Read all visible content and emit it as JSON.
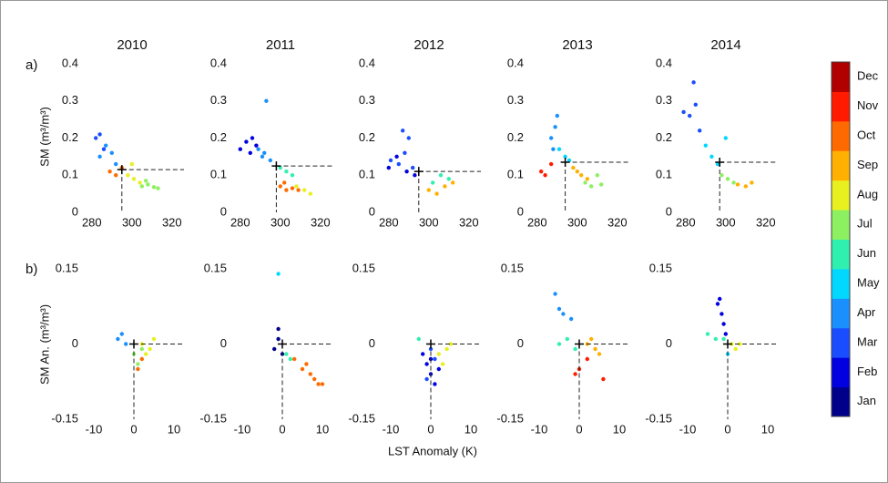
{
  "panel_labels": [
    "a)",
    "b)"
  ],
  "y_labels": [
    "SM (m³/m³)",
    "SM An. (m³/m³)"
  ],
  "x_label": "LST Anomaly (K)",
  "colorbar": {
    "labels": [
      "Jan",
      "Feb",
      "Mar",
      "Apr",
      "May",
      "Jun",
      "Jul",
      "Aug",
      "Sep",
      "Oct",
      "Nov",
      "Dec"
    ],
    "colors": [
      "#00008b",
      "#0000e0",
      "#1a4dff",
      "#1a90ff",
      "#00d8ff",
      "#30f0b0",
      "#8cf060",
      "#e8f020",
      "#ffb000",
      "#ff6a00",
      "#ff1a00",
      "#b00000"
    ]
  },
  "chart_data": [
    {
      "type": "scatter",
      "title": "2010",
      "xlim": [
        276,
        326
      ],
      "xticks": [
        280,
        300,
        320
      ],
      "ylim": [
        0,
        0.4
      ],
      "yticks": [
        0,
        0.1,
        0.2,
        0.3,
        0.4
      ],
      "reference": {
        "x": 295,
        "y": 0.115
      },
      "series": [
        {
          "color": "#1a4dff",
          "x": [
            282,
            284,
            286
          ],
          "values": [
            0.2,
            0.21,
            0.17
          ]
        },
        {
          "color": "#1a90ff",
          "x": [
            284,
            287,
            290,
            292
          ],
          "values": [
            0.15,
            0.18,
            0.16,
            0.13
          ]
        },
        {
          "color": "#ff6a00",
          "x": [
            289,
            292,
            295
          ],
          "values": [
            0.11,
            0.1,
            0.12
          ]
        },
        {
          "color": "#e8f020",
          "x": [
            298,
            301,
            304,
            300
          ],
          "values": [
            0.1,
            0.09,
            0.08,
            0.13
          ]
        },
        {
          "color": "#8cf060",
          "x": [
            305,
            308,
            311,
            313,
            307
          ],
          "values": [
            0.07,
            0.075,
            0.068,
            0.065,
            0.085
          ]
        }
      ]
    },
    {
      "type": "scatter",
      "title": "2011",
      "xlim": [
        276,
        326
      ],
      "xticks": [
        280,
        300,
        320
      ],
      "ylim": [
        0,
        0.4
      ],
      "yticks": [
        0,
        0.1,
        0.2,
        0.3,
        0.4
      ],
      "reference": {
        "x": 298,
        "y": 0.125
      },
      "series": [
        {
          "color": "#0000e0",
          "x": [
            280,
            283,
            286,
            288,
            285
          ],
          "values": [
            0.17,
            0.19,
            0.2,
            0.18,
            0.16
          ]
        },
        {
          "color": "#1a90ff",
          "x": [
            289,
            292,
            295,
            293,
            291
          ],
          "values": [
            0.17,
            0.16,
            0.14,
            0.3,
            0.15
          ]
        },
        {
          "color": "#30f0b0",
          "x": [
            300,
            303,
            306
          ],
          "values": [
            0.12,
            0.11,
            0.1
          ]
        },
        {
          "color": "#ff6a00",
          "x": [
            300,
            303,
            306,
            309,
            302
          ],
          "values": [
            0.07,
            0.06,
            0.065,
            0.06,
            0.08
          ]
        },
        {
          "color": "#e8f020",
          "x": [
            308,
            312,
            315
          ],
          "values": [
            0.07,
            0.06,
            0.05
          ]
        }
      ]
    },
    {
      "type": "scatter",
      "title": "2012",
      "xlim": [
        276,
        326
      ],
      "xticks": [
        280,
        300,
        320
      ],
      "ylim": [
        0,
        0.4
      ],
      "yticks": [
        0,
        0.1,
        0.2,
        0.3,
        0.4
      ],
      "reference": {
        "x": 295,
        "y": 0.11
      },
      "series": [
        {
          "color": "#1a4dff",
          "x": [
            281,
            285,
            288,
            290,
            287,
            292
          ],
          "values": [
            0.14,
            0.13,
            0.16,
            0.2,
            0.22,
            0.12
          ]
        },
        {
          "color": "#0000e0",
          "x": [
            280,
            284,
            289,
            293
          ],
          "values": [
            0.12,
            0.15,
            0.11,
            0.1
          ]
        },
        {
          "color": "#ffb000",
          "x": [
            300,
            304,
            308,
            312
          ],
          "values": [
            0.06,
            0.05,
            0.07,
            0.08
          ]
        },
        {
          "color": "#30f0b0",
          "x": [
            302,
            306,
            310
          ],
          "values": [
            0.08,
            0.1,
            0.09
          ]
        }
      ]
    },
    {
      "type": "scatter",
      "title": "2013",
      "xlim": [
        276,
        326
      ],
      "xticks": [
        280,
        300,
        320
      ],
      "ylim": [
        0,
        0.4
      ],
      "yticks": [
        0,
        0.1,
        0.2,
        0.3,
        0.4
      ],
      "reference": {
        "x": 294,
        "y": 0.135
      },
      "series": [
        {
          "color": "#ff1a00",
          "x": [
            282,
            284,
            287
          ],
          "values": [
            0.11,
            0.1,
            0.13
          ]
        },
        {
          "color": "#1a90ff",
          "x": [
            287,
            289,
            290,
            288
          ],
          "values": [
            0.2,
            0.23,
            0.26,
            0.17
          ]
        },
        {
          "color": "#00d8ff",
          "x": [
            291,
            294,
            296
          ],
          "values": [
            0.17,
            0.15,
            0.14
          ]
        },
        {
          "color": "#ffb000",
          "x": [
            298,
            302,
            305,
            300
          ],
          "values": [
            0.12,
            0.1,
            0.09,
            0.11
          ]
        },
        {
          "color": "#8cf060",
          "x": [
            304,
            307,
            310,
            312
          ],
          "values": [
            0.08,
            0.07,
            0.1,
            0.075
          ]
        }
      ]
    },
    {
      "type": "scatter",
      "title": "2014",
      "xlim": [
        276,
        326
      ],
      "xticks": [
        280,
        300,
        320
      ],
      "ylim": [
        0,
        0.4
      ],
      "yticks": [
        0,
        0.1,
        0.2,
        0.3,
        0.4
      ],
      "reference": {
        "x": 297,
        "y": 0.135
      },
      "series": [
        {
          "color": "#1a4dff",
          "x": [
            279,
            282,
            285,
            284,
            287
          ],
          "values": [
            0.27,
            0.26,
            0.29,
            0.35,
            0.22
          ]
        },
        {
          "color": "#00d8ff",
          "x": [
            290,
            293,
            296,
            300
          ],
          "values": [
            0.18,
            0.15,
            0.13,
            0.2
          ]
        },
        {
          "color": "#8cf060",
          "x": [
            298,
            301,
            304
          ],
          "values": [
            0.1,
            0.09,
            0.08
          ]
        },
        {
          "color": "#ffb000",
          "x": [
            306,
            310,
            313
          ],
          "values": [
            0.075,
            0.07,
            0.08
          ]
        }
      ]
    },
    {
      "type": "scatter",
      "xlim": [
        -12.5,
        12.5
      ],
      "xticks": [
        -10,
        0,
        10
      ],
      "ylim": [
        -0.15,
        0.15
      ],
      "yticks": [
        -0.15,
        0,
        0.15
      ],
      "reference": {
        "x": 0,
        "y": 0
      },
      "series": [
        {
          "color": "#1a90ff",
          "x": [
            -4,
            -3,
            -2
          ],
          "values": [
            0.01,
            0.02,
            0
          ]
        },
        {
          "color": "#8cf060",
          "x": [
            0,
            1,
            2
          ],
          "values": [
            -0.02,
            -0.04,
            -0.01
          ]
        },
        {
          "color": "#e8f020",
          "x": [
            2,
            4,
            5,
            3
          ],
          "values": [
            0,
            -0.01,
            0.01,
            -0.02
          ]
        },
        {
          "color": "#ff6a00",
          "x": [
            1,
            2
          ],
          "values": [
            -0.05,
            -0.03
          ]
        }
      ]
    },
    {
      "type": "scatter",
      "xlim": [
        -12.5,
        12.5
      ],
      "xticks": [
        -10,
        0,
        10
      ],
      "ylim": [
        -0.15,
        0.15
      ],
      "yticks": [
        -0.15,
        0,
        0.15
      ],
      "reference": {
        "x": 0,
        "y": 0
      },
      "series": [
        {
          "color": "#00008b",
          "x": [
            -1,
            0,
            -2,
            -1
          ],
          "values": [
            0.01,
            -0.02,
            -0.01,
            0.03
          ]
        },
        {
          "color": "#00d8ff",
          "x": [
            -1
          ],
          "values": [
            0.14
          ]
        },
        {
          "color": "#30f0b0",
          "x": [
            1,
            2
          ],
          "values": [
            -0.02,
            -0.03
          ]
        },
        {
          "color": "#ff6a00",
          "x": [
            3,
            5,
            7,
            9,
            10,
            6,
            8
          ],
          "values": [
            -0.03,
            -0.05,
            -0.06,
            -0.08,
            -0.08,
            -0.04,
            -0.07
          ]
        }
      ]
    },
    {
      "type": "scatter",
      "xlim": [
        -12.5,
        12.5
      ],
      "xticks": [
        -10,
        0,
        10
      ],
      "ylim": [
        -0.15,
        0.15
      ],
      "yticks": [
        -0.15,
        0,
        0.15
      ],
      "reference": {
        "x": 0,
        "y": 0
      },
      "series": [
        {
          "color": "#0000e0",
          "x": [
            -1,
            0,
            1,
            -2,
            0,
            2
          ],
          "values": [
            -0.04,
            -0.06,
            -0.08,
            -0.02,
            -0.03,
            -0.05
          ]
        },
        {
          "color": "#1a4dff",
          "x": [
            -1,
            1,
            0
          ],
          "values": [
            -0.07,
            -0.03,
            -0.01
          ]
        },
        {
          "color": "#e8f020",
          "x": [
            2,
            4,
            5,
            3
          ],
          "values": [
            -0.02,
            -0.01,
            0,
            -0.04
          ]
        },
        {
          "color": "#30f0b0",
          "x": [
            -3
          ],
          "values": [
            0.01
          ]
        }
      ]
    },
    {
      "type": "scatter",
      "xlim": [
        -12.5,
        12.5
      ],
      "xticks": [
        -10,
        0,
        10
      ],
      "ylim": [
        -0.15,
        0.15
      ],
      "yticks": [
        -0.15,
        0,
        0.15
      ],
      "reference": {
        "x": 0,
        "y": 0
      },
      "series": [
        {
          "color": "#1a90ff",
          "x": [
            -6,
            -5,
            -4,
            -2
          ],
          "values": [
            0.1,
            0.07,
            0.06,
            0.05
          ]
        },
        {
          "color": "#30f0b0",
          "x": [
            -5,
            -3,
            -1
          ],
          "values": [
            0,
            0.01,
            -0.01
          ]
        },
        {
          "color": "#ff1a00",
          "x": [
            -1,
            0,
            6,
            2
          ],
          "values": [
            -0.06,
            -0.05,
            -0.07,
            -0.03
          ]
        },
        {
          "color": "#ffb000",
          "x": [
            2,
            4,
            5,
            3
          ],
          "values": [
            0,
            -0.01,
            -0.02,
            0.01
          ]
        }
      ]
    },
    {
      "type": "scatter",
      "xlim": [
        -12.5,
        12.5
      ],
      "xticks": [
        -10,
        0,
        10
      ],
      "ylim": [
        -0.15,
        0.15
      ],
      "yticks": [
        -0.15,
        0,
        0.15
      ],
      "reference": {
        "x": 0,
        "y": 0
      },
      "series": [
        {
          "color": "#0000e0",
          "x": [
            -2,
            -2.5,
            -1.5,
            -1,
            -0.5
          ],
          "values": [
            0.09,
            0.08,
            0.06,
            0.04,
            0.02
          ]
        },
        {
          "color": "#30f0b0",
          "x": [
            -5,
            -3,
            -1
          ],
          "values": [
            0.02,
            0.01,
            0.01
          ]
        },
        {
          "color": "#e8f020",
          "x": [
            1,
            2,
            3
          ],
          "values": [
            0,
            -0.01,
            0
          ]
        },
        {
          "color": "#00d8ff",
          "x": [
            0
          ],
          "values": [
            -0.02
          ]
        }
      ]
    }
  ]
}
